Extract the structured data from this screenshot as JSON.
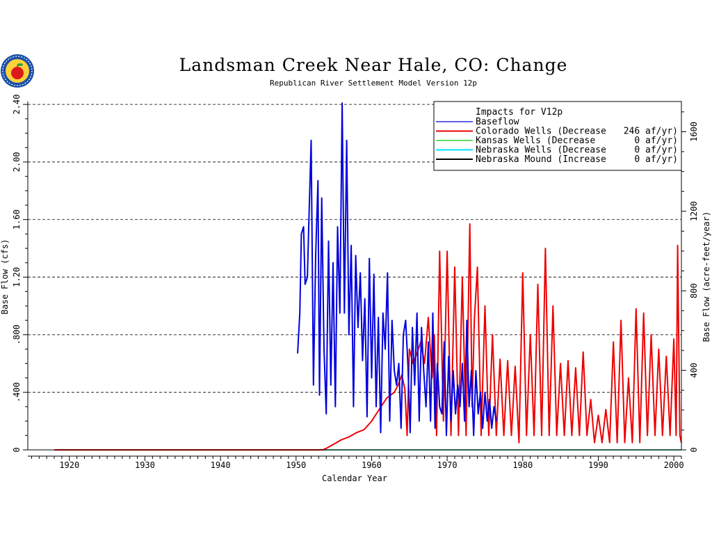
{
  "chart_data": {
    "type": "line",
    "title": "Landsman Creek Near Hale, CO: Change",
    "subtitle": "Republican River Settlement Model Version 12p",
    "xlabel": "Calendar Year",
    "ylabel": "Base Flow (cfs)",
    "ylabel_right": "Base Flow (acre-feet/year)",
    "xlim": [
      1914.5,
      2001
    ],
    "ylim": [
      0,
      2.42
    ],
    "ylim_right": [
      0,
      1752
    ],
    "x_ticks": [
      1920,
      1930,
      1940,
      1950,
      1960,
      1970,
      1980,
      1990,
      2000
    ],
    "x_tick_labels": [
      "1920",
      "1930",
      "1940",
      "1950",
      "1960",
      "1970",
      "1980",
      "1990",
      "2000"
    ],
    "y_ticks": [
      0,
      0.4,
      0.8,
      1.2,
      1.6,
      2.0,
      2.4
    ],
    "y_tick_labels": [
      "0",
      ".400",
      ".800",
      "1.20",
      "1.60",
      "2.00",
      "2.40"
    ],
    "y_ticks_right": [
      0,
      400,
      800,
      1200,
      1600
    ],
    "y_tick_labels_right": [
      "0",
      "400",
      "800",
      "1200",
      "1600"
    ],
    "grid": "horizontal dashed",
    "legend_position": "top-right",
    "legend_header": "Impacts for V12p",
    "colors": {
      "baseflow": "#0000dd",
      "colorado": "#ee0000",
      "kansas": "#66dd66",
      "nebraska": "#00e5ff",
      "mound": "#000000"
    },
    "series": [
      {
        "name": "Baseflow",
        "color": "#0000dd",
        "x": [
          1950.2,
          1950.5,
          1950.7,
          1951,
          1951.2,
          1951.5,
          1951.7,
          1952,
          1952.3,
          1952.6,
          1952.9,
          1953.1,
          1953.4,
          1953.7,
          1954,
          1954.3,
          1954.6,
          1954.9,
          1955.2,
          1955.5,
          1955.8,
          1956.1,
          1956.4,
          1956.7,
          1957,
          1957.3,
          1957.6,
          1957.9,
          1958.2,
          1958.5,
          1958.8,
          1959.1,
          1959.4,
          1959.7,
          1960,
          1960.3,
          1960.6,
          1960.9,
          1961.2,
          1961.5,
          1961.8,
          1962.1,
          1962.4,
          1962.7,
          1963,
          1963.3,
          1963.6,
          1963.9,
          1964.2,
          1964.5,
          1964.8,
          1965.1,
          1965.4,
          1965.7,
          1966,
          1966.3,
          1966.6,
          1966.9,
          1967.2,
          1967.5,
          1967.8,
          1968.1,
          1968.4,
          1968.7,
          1969,
          1969.3,
          1969.6,
          1969.9,
          1970.2,
          1970.5,
          1970.8,
          1971.1,
          1971.4,
          1971.7,
          1972,
          1972.3,
          1972.6,
          1972.9,
          1973.2,
          1973.5,
          1973.8,
          1974.1,
          1974.4,
          1974.7,
          1975,
          1975.3,
          1975.6,
          1975.9,
          1976.2,
          1976.5
        ],
        "y": [
          0.67,
          0.95,
          1.5,
          1.55,
          1.15,
          1.2,
          1.6,
          2.15,
          0.45,
          1.35,
          1.87,
          0.38,
          1.75,
          0.7,
          0.25,
          1.45,
          0.45,
          1.3,
          0.3,
          1.55,
          0.95,
          2.41,
          0.95,
          2.15,
          0.8,
          1.42,
          0.3,
          1.35,
          0.85,
          1.23,
          0.62,
          1.05,
          0.23,
          1.33,
          0.5,
          1.22,
          0.3,
          0.92,
          0.12,
          0.95,
          0.7,
          1.23,
          0.2,
          0.9,
          0.55,
          0.45,
          0.6,
          0.15,
          0.8,
          0.9,
          0.6,
          0.12,
          0.85,
          0.45,
          0.95,
          0.2,
          0.85,
          0.55,
          0.3,
          0.75,
          0.2,
          0.95,
          0.15,
          0.6,
          0.3,
          0.25,
          0.75,
          0.1,
          0.65,
          0.2,
          0.55,
          0.25,
          0.45,
          0.3,
          0.6,
          0.2,
          0.9,
          0.3,
          0.55,
          0.1,
          0.55,
          0.25,
          0.4,
          0.15,
          0.4,
          0.2,
          0.35,
          0.15,
          0.3,
          0.2
        ]
      },
      {
        "name": "Colorado Wells (Decrease",
        "amount": "246 af/yr)",
        "color": "#ee0000",
        "x": [
          1918,
          1953.5,
          1954,
          1955,
          1956,
          1957,
          1958,
          1959,
          1960,
          1961,
          1962,
          1963,
          1963.5,
          1964,
          1964.4,
          1964.7,
          1965,
          1965.5,
          1966,
          1966.5,
          1967,
          1967.5,
          1968,
          1968.3,
          1968.6,
          1969,
          1969.5,
          1970,
          1970.5,
          1971,
          1971.5,
          1972,
          1972.5,
          1973,
          1973.3,
          1973.6,
          1974,
          1974.5,
          1975,
          1975.5,
          1976,
          1976.5,
          1977,
          1977.5,
          1978,
          1978.5,
          1979,
          1979.5,
          1980,
          1980.5,
          1981,
          1981.5,
          1982,
          1982.5,
          1983,
          1983.5,
          1984,
          1984.5,
          1985,
          1985.5,
          1986,
          1986.5,
          1987,
          1987.5,
          1988,
          1988.5,
          1989,
          1989.5,
          1990,
          1990.5,
          1991,
          1991.5,
          1992,
          1992.5,
          1993,
          1993.5,
          1994,
          1994.5,
          1995,
          1995.5,
          1996,
          1996.5,
          1997,
          1997.5,
          1998,
          1998.5,
          1999,
          1999.5,
          2000,
          2000.3,
          2000.5,
          2000.8,
          2001
        ],
        "y": [
          0,
          0,
          0.01,
          0.04,
          0.07,
          0.09,
          0.12,
          0.14,
          0.2,
          0.28,
          0.36,
          0.4,
          0.45,
          0.52,
          0.42,
          0.1,
          0.7,
          0.6,
          0.67,
          0.75,
          0.6,
          0.92,
          0.5,
          0.8,
          0.1,
          1.38,
          0.2,
          1.38,
          0.1,
          1.27,
          0.1,
          1.2,
          0.1,
          1.57,
          0.3,
          0.9,
          1.27,
          0.1,
          1.0,
          0.1,
          0.8,
          0.1,
          0.63,
          0.1,
          0.62,
          0.1,
          0.58,
          0.05,
          1.23,
          0.1,
          0.8,
          0.1,
          1.15,
          0.1,
          1.4,
          0.1,
          1.0,
          0.1,
          0.6,
          0.1,
          0.62,
          0.1,
          0.57,
          0.1,
          0.68,
          0.1,
          0.35,
          0.05,
          0.24,
          0.05,
          0.28,
          0.05,
          0.75,
          0.05,
          0.9,
          0.05,
          0.5,
          0.05,
          0.98,
          0.05,
          0.95,
          0.1,
          0.8,
          0.1,
          0.7,
          0.1,
          0.65,
          0.1,
          0.77,
          0.1,
          1.42,
          0.1,
          0.05
        ]
      },
      {
        "name": "Kansas Wells (Decrease",
        "amount": "0 af/yr)",
        "color": "#66dd66",
        "x": [
          1918,
          2001
        ],
        "y": [
          0,
          0
        ]
      },
      {
        "name": "Nebraska Wells (Decrease",
        "amount": "0 af/yr)",
        "color": "#00e5ff",
        "x": [
          1918,
          2001
        ],
        "y": [
          0,
          0
        ]
      },
      {
        "name": "Nebraska Mound (Increase",
        "amount": "0 af/yr)",
        "color": "#000000",
        "x": [
          1918,
          2001
        ],
        "y": [
          0,
          0
        ]
      }
    ]
  }
}
